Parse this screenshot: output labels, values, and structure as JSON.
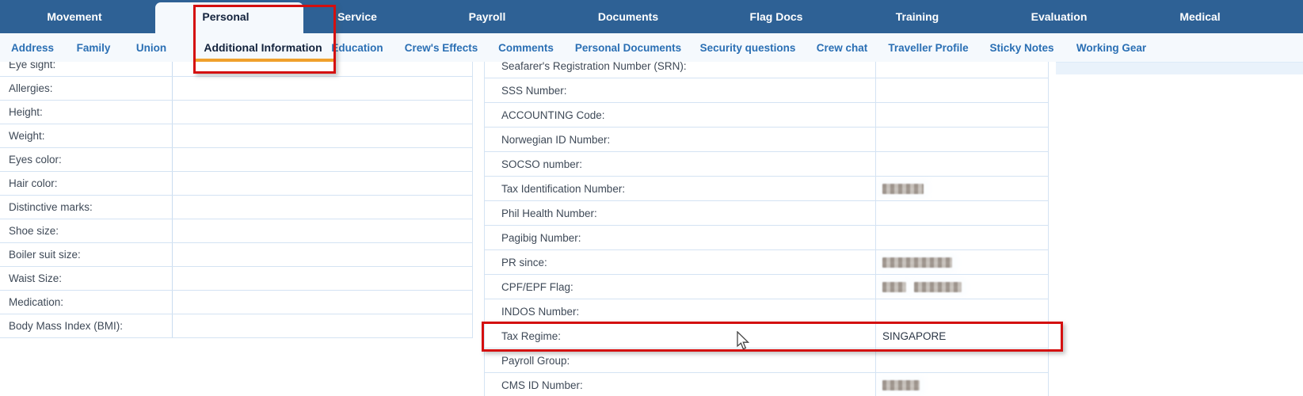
{
  "colors": {
    "topbar_blue": "#2e6195",
    "subtab_blue": "#2a6fb4",
    "active_text": "#13233d",
    "accent_orange": "#efa02c",
    "annotation_red": "#d40f0f",
    "row_border": "#d4e3f3"
  },
  "top_tabs": [
    {
      "label": "Movement",
      "active": false
    },
    {
      "label": "Personal",
      "active": true
    },
    {
      "label": "Service",
      "active": false
    },
    {
      "label": "Payroll",
      "active": false
    },
    {
      "label": "Documents",
      "active": false
    },
    {
      "label": "Flag Docs",
      "active": false
    },
    {
      "label": "Training",
      "active": false
    },
    {
      "label": "Evaluation",
      "active": false
    },
    {
      "label": "Medical",
      "active": false
    }
  ],
  "sub_tabs": [
    {
      "label": "Address",
      "active": false
    },
    {
      "label": "Family",
      "active": false
    },
    {
      "label": "Union",
      "active": false
    },
    {
      "label": "Additional Information",
      "active": true
    },
    {
      "label": "Education",
      "active": false
    },
    {
      "label": "Crew's Effects",
      "active": false
    },
    {
      "label": "Comments",
      "active": false
    },
    {
      "label": "Personal Documents",
      "active": false
    },
    {
      "label": "Security questions",
      "active": false
    },
    {
      "label": "Crew chat",
      "active": false
    },
    {
      "label": "Traveller Profile",
      "active": false
    },
    {
      "label": "Sticky Notes",
      "active": false
    },
    {
      "label": "Working Gear",
      "active": false
    }
  ],
  "left_panel": {
    "rows": [
      {
        "label": "Eye sight:",
        "value": ""
      },
      {
        "label": "Allergies:",
        "value": ""
      },
      {
        "label": "Height:",
        "value": ""
      },
      {
        "label": "Weight:",
        "value": ""
      },
      {
        "label": "Eyes color:",
        "value": ""
      },
      {
        "label": "Hair color:",
        "value": ""
      },
      {
        "label": "Distinctive marks:",
        "value": ""
      },
      {
        "label": "Shoe size:",
        "value": ""
      },
      {
        "label": "Boiler suit size:",
        "value": ""
      },
      {
        "label": "Waist Size:",
        "value": ""
      },
      {
        "label": "Medication:",
        "value": ""
      },
      {
        "label": "Body Mass Index (BMI):",
        "value": ""
      }
    ]
  },
  "right_panel": {
    "rows": [
      {
        "label": "Seafarer's Registration Number (SRN):",
        "value": ""
      },
      {
        "label": "SSS Number:",
        "value": ""
      },
      {
        "label": "ACCOUNTING Code:",
        "value": ""
      },
      {
        "label": "Norwegian ID Number:",
        "value": ""
      },
      {
        "label": "SOCSO number:",
        "value": ""
      },
      {
        "label": "Tax Identification Number:",
        "value": "",
        "redacted": true,
        "redacted_widths": [
          52
        ]
      },
      {
        "label": "Phil Health Number:",
        "value": ""
      },
      {
        "label": "Pagibig Number:",
        "value": ""
      },
      {
        "label": "PR since:",
        "value": "",
        "redacted": true,
        "redacted_widths": [
          88
        ]
      },
      {
        "label": "CPF/EPF Flag:",
        "value": "",
        "redacted": true,
        "redacted_widths": [
          30,
          60
        ]
      },
      {
        "label": "INDOS Number:",
        "value": ""
      },
      {
        "label": "Tax Regime:",
        "value": "SINGAPORE",
        "highlighted": true
      },
      {
        "label": "Payroll Group:",
        "value": ""
      },
      {
        "label": "CMS ID Number:",
        "value": "",
        "redacted": true,
        "redacted_widths": [
          47
        ]
      }
    ]
  },
  "annotations": {
    "tab_highlight": "Personal / Additional Information",
    "row_highlight": "Tax Regime"
  }
}
